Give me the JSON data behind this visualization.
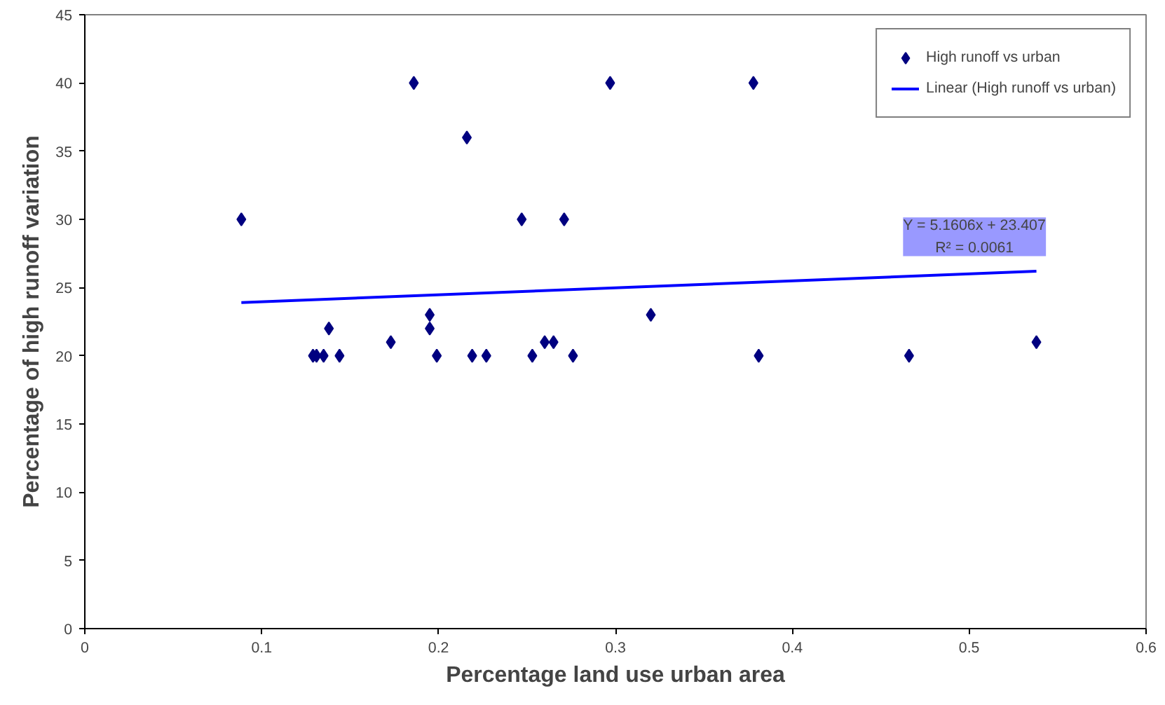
{
  "chart_data": {
    "type": "scatter",
    "xlabel": "Percentage land use urban area",
    "ylabel": "Percentage of high runoff variation",
    "xlim": [
      0,
      0.6
    ],
    "ylim": [
      0,
      45
    ],
    "xticks": [
      0,
      0.1,
      0.2,
      0.3,
      0.4,
      0.5,
      0.6
    ],
    "yticks": [
      0,
      5,
      10,
      15,
      20,
      25,
      30,
      35,
      40,
      45
    ],
    "grid": false,
    "legend": "top right",
    "series": [
      {
        "name": "High runoff vs urban",
        "color": "#000080",
        "marker": "diamond",
        "x": [
          0.0885,
          0.186,
          0.216,
          0.247,
          0.271,
          0.297,
          0.378,
          0.138,
          0.129,
          0.131,
          0.135,
          0.144,
          0.173,
          0.195,
          0.195,
          0.199,
          0.219,
          0.227,
          0.253,
          0.26,
          0.265,
          0.276,
          0.32,
          0.381,
          0.466,
          0.538
        ],
        "values": [
          30,
          40,
          36,
          30,
          30,
          40,
          40,
          22,
          20,
          20,
          20,
          20,
          21,
          23,
          22,
          20,
          20,
          20,
          20,
          21,
          21,
          20,
          23,
          20,
          20,
          21
        ]
      },
      {
        "name": "Linear (High runoff vs urban)",
        "color": "#0000ff",
        "type": "line",
        "x": [
          0.0885,
          0.538
        ],
        "values": [
          23.9,
          26.2
        ]
      }
    ],
    "annotations": [
      "Y = 5.1606x + 23.407\nR² = 0.0061"
    ]
  }
}
